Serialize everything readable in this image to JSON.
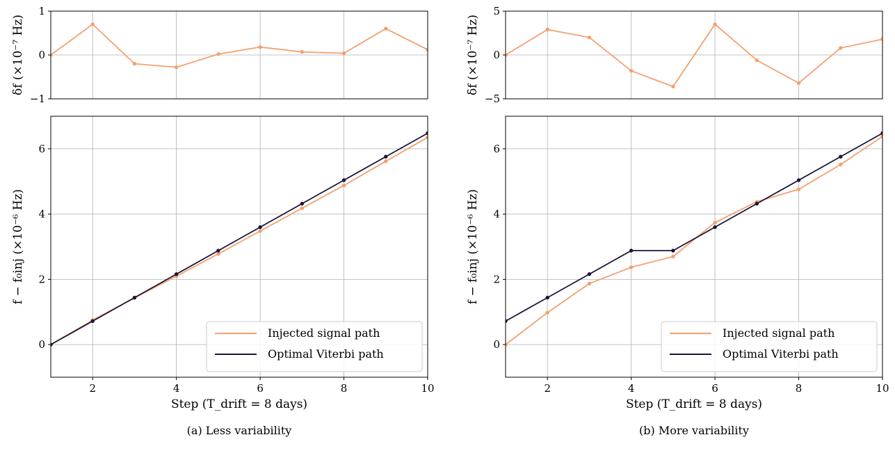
{
  "chart_data": [
    {
      "type": "line",
      "caption": "(a) Less variability",
      "top": {
        "ylabel": "δf (×10⁻⁷ Hz)",
        "ylim": [
          -1,
          1
        ],
        "yticks": [
          -1,
          0,
          1
        ],
        "xlim": [
          1,
          10
        ],
        "series": [
          {
            "x": [
              1,
              2,
              3,
              4,
              5,
              6,
              7,
              8,
              9,
              10
            ],
            "values": [
              0.0,
              0.7,
              -0.2,
              -0.28,
              0.02,
              0.18,
              0.07,
              0.04,
              0.6,
              0.12
            ]
          }
        ]
      },
      "bottom": {
        "xlabel": "Step (T_drift = 8 days)",
        "ylabel": "f − f₀inj (×10⁻⁶ Hz)",
        "xlim": [
          1,
          10
        ],
        "ylim": [
          -1,
          7
        ],
        "xticks": [
          2,
          4,
          6,
          8,
          10
        ],
        "yticks": [
          0,
          2,
          4,
          6
        ],
        "legend": "bottom-right",
        "series": [
          {
            "name": "Injected signal path",
            "color": "#f4a070",
            "x": [
              1,
              2,
              3,
              4,
              5,
              6,
              7,
              8,
              9,
              10
            ],
            "values": [
              0.0,
              0.75,
              1.43,
              2.1,
              2.78,
              3.48,
              4.18,
              4.88,
              5.62,
              6.35
            ]
          },
          {
            "name": "Optimal Viterbi path",
            "color": "#1b1538",
            "x": [
              1,
              2,
              3,
              4,
              5,
              6,
              7,
              8,
              9,
              10
            ],
            "values": [
              0.0,
              0.72,
              1.44,
              2.16,
              2.88,
              3.6,
              4.32,
              5.04,
              5.76,
              6.48
            ]
          }
        ]
      }
    },
    {
      "type": "line",
      "caption": "(b) More variability",
      "top": {
        "ylabel": "δf (×10⁻⁷ Hz)",
        "ylim": [
          -5,
          5
        ],
        "yticks": [
          -5,
          0,
          5
        ],
        "xlim": [
          1,
          10
        ],
        "series": [
          {
            "x": [
              1,
              2,
              3,
              4,
              5,
              6,
              7,
              8,
              9,
              10
            ],
            "values": [
              0.0,
              2.9,
              2.0,
              -1.8,
              -3.6,
              3.5,
              -0.6,
              -3.2,
              0.8,
              1.8
            ]
          }
        ]
      },
      "bottom": {
        "xlabel": "Step (T_drift = 8 days)",
        "ylabel": "f − f₀inj (×10⁻⁶ Hz)",
        "xlim": [
          1,
          10
        ],
        "ylim": [
          -1,
          7
        ],
        "xticks": [
          2,
          4,
          6,
          8,
          10
        ],
        "yticks": [
          0,
          2,
          4,
          6
        ],
        "legend": "bottom-right",
        "series": [
          {
            "name": "Injected signal path",
            "color": "#f4a070",
            "x": [
              1,
              2,
              3,
              4,
              5,
              6,
              7,
              8,
              9,
              10
            ],
            "values": [
              0.0,
              0.98,
              1.87,
              2.37,
              2.7,
              3.74,
              4.38,
              4.76,
              5.52,
              6.38
            ]
          },
          {
            "name": "Optimal Viterbi path",
            "color": "#1b1538",
            "x": [
              1,
              2,
              3,
              4,
              5,
              6,
              7,
              8,
              9,
              10
            ],
            "values": [
              0.72,
              1.44,
              2.16,
              2.88,
              2.88,
              3.6,
              4.32,
              5.04,
              5.76,
              6.48
            ]
          }
        ]
      }
    }
  ]
}
